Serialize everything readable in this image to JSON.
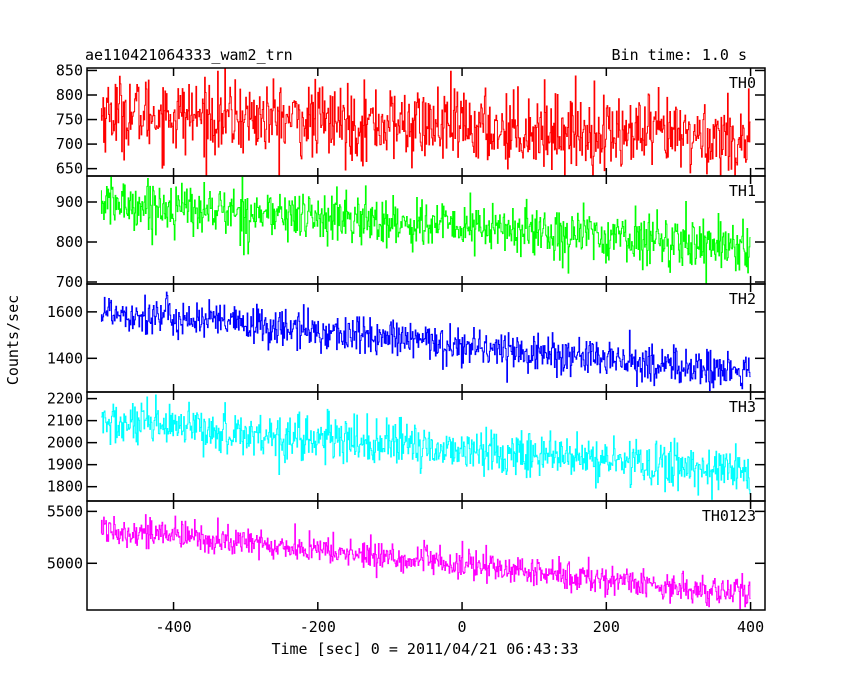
{
  "header": {
    "title": "ae110421064333_wam2_trn",
    "bin_time": "Bin time: 1.0 s"
  },
  "chart_data": {
    "type": "line",
    "xlabel": "Time [sec] 0 = 2011/04/21 06:43:33",
    "ylabel": "Counts/sec",
    "xlim": [
      -520,
      420
    ],
    "x_ticks": [
      -400,
      -200,
      0,
      200,
      400
    ],
    "x_start": -500,
    "x_end": 400,
    "x_step": 1,
    "panels": [
      {
        "name": "TH0",
        "color": "#ff0000",
        "ylim": [
          635,
          855
        ],
        "y_ticks": [
          650,
          700,
          750,
          800,
          850
        ],
        "trend_start": 765,
        "trend_end": 710,
        "noise": 38
      },
      {
        "name": "TH1",
        "color": "#00ff00",
        "ylim": [
          695,
          965
        ],
        "y_ticks": [
          700,
          800,
          900
        ],
        "trend_start": 898,
        "trend_end": 790,
        "noise": 32
      },
      {
        "name": "TH2",
        "color": "#0000ff",
        "ylim": [
          1255,
          1720
        ],
        "y_ticks": [
          1400,
          1600
        ],
        "trend_start": 1605,
        "trend_end": 1335,
        "noise": 42
      },
      {
        "name": "TH3",
        "color": "#00ffff",
        "ylim": [
          1735,
          2230
        ],
        "y_ticks": [
          1800,
          1900,
          2000,
          2100,
          2200
        ],
        "trend_start": 2090,
        "trend_end": 1870,
        "noise": 52
      },
      {
        "name": "TH0123",
        "color": "#ff00ff",
        "ylim": [
          4550,
          5600
        ],
        "y_ticks": [
          5000,
          5500
        ],
        "trend_start": 5340,
        "trend_end": 4700,
        "noise": 72
      }
    ]
  }
}
